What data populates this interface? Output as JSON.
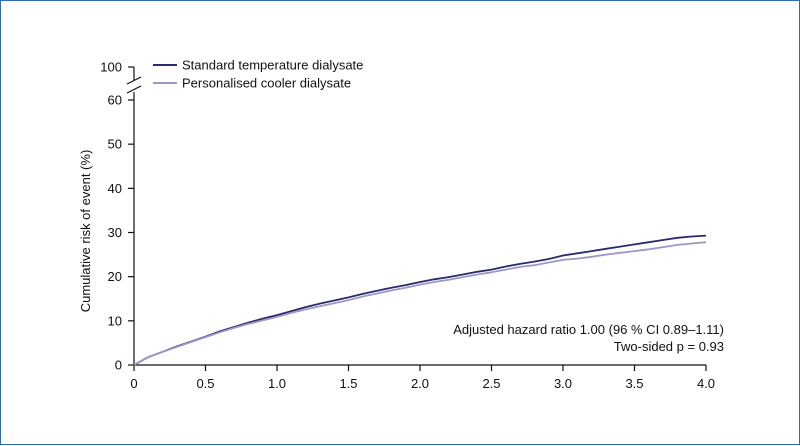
{
  "chart_data": {
    "type": "line",
    "ylabel": "Cumulative risk of event (%)",
    "xlabel": "",
    "xlim": [
      0,
      4.0
    ],
    "ylim": [
      0,
      60
    ],
    "y_break_top_value": 100,
    "x_ticks": [
      "0",
      "0.5",
      "1.0",
      "1.5",
      "2.0",
      "2.5",
      "3.0",
      "3.5",
      "4.0"
    ],
    "y_ticks": [
      "0",
      "10",
      "20",
      "30",
      "40",
      "50",
      "60"
    ],
    "y_break_label": "100",
    "grid": false,
    "legend_position": "top-left",
    "series": [
      {
        "name": "Standard temperature dialysate",
        "color": "#2b2a6e",
        "x": [
          0,
          0.1,
          0.2,
          0.3,
          0.4,
          0.5,
          0.6,
          0.7,
          0.8,
          0.9,
          1.0,
          1.1,
          1.2,
          1.3,
          1.4,
          1.5,
          1.6,
          1.7,
          1.8,
          1.9,
          2.0,
          2.1,
          2.2,
          2.3,
          2.4,
          2.5,
          2.6,
          2.7,
          2.8,
          2.9,
          3.0,
          3.1,
          3.2,
          3.3,
          3.4,
          3.5,
          3.6,
          3.7,
          3.8,
          3.9,
          4.0
        ],
        "y": [
          0,
          1.8,
          3.0,
          4.2,
          5.3,
          6.4,
          7.6,
          8.6,
          9.6,
          10.5,
          11.3,
          12.2,
          13.1,
          13.9,
          14.6,
          15.3,
          16.1,
          16.8,
          17.5,
          18.1,
          18.8,
          19.4,
          19.9,
          20.5,
          21.1,
          21.6,
          22.3,
          22.9,
          23.4,
          24.0,
          24.8,
          25.3,
          25.8,
          26.3,
          26.8,
          27.3,
          27.8,
          28.3,
          28.8,
          29.1,
          29.3
        ]
      },
      {
        "name": "Personalised cooler dialysate",
        "color": "#9e97c6",
        "x": [
          0,
          0.1,
          0.2,
          0.3,
          0.4,
          0.5,
          0.6,
          0.7,
          0.8,
          0.9,
          1.0,
          1.1,
          1.2,
          1.3,
          1.4,
          1.5,
          1.6,
          1.7,
          1.8,
          1.9,
          2.0,
          2.1,
          2.2,
          2.3,
          2.4,
          2.5,
          2.6,
          2.7,
          2.8,
          2.9,
          3.0,
          3.1,
          3.2,
          3.3,
          3.4,
          3.5,
          3.6,
          3.7,
          3.8,
          3.9,
          4.0
        ],
        "y": [
          0,
          1.8,
          3.0,
          4.1,
          5.2,
          6.3,
          7.4,
          8.4,
          9.3,
          10.1,
          10.9,
          11.8,
          12.6,
          13.3,
          14.0,
          14.7,
          15.5,
          16.2,
          16.9,
          17.5,
          18.2,
          18.8,
          19.3,
          19.9,
          20.5,
          21.0,
          21.6,
          22.2,
          22.6,
          23.2,
          23.8,
          24.1,
          24.5,
          25.0,
          25.4,
          25.8,
          26.2,
          26.7,
          27.2,
          27.5,
          27.8
        ]
      }
    ],
    "annotations": [
      "Adjusted hazard ratio 1.00 (96 % CI 0.89–1.11)",
      "Two-sided p = 0.93"
    ]
  }
}
